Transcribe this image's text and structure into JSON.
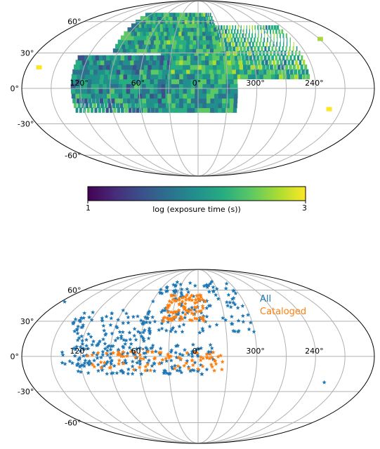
{
  "colors": {
    "all": "#1f77b4",
    "cataloged": "#ff7f0e",
    "grid": "#b0b0b0",
    "viridis": [
      "#440154",
      "#472c7a",
      "#3b518b",
      "#2c718e",
      "#21908d",
      "#27ad81",
      "#5cc863",
      "#aadc32",
      "#fde725"
    ]
  },
  "chart_data": [
    {
      "type": "heatmap",
      "projection": "mollweide",
      "grid": true,
      "lon_ticks": [
        "120°",
        "60°",
        "0°",
        "300°",
        "240°"
      ],
      "lat_ticks": [
        "60°",
        "30°",
        "0°",
        "-30°",
        "-60°"
      ],
      "colorbar": {
        "label": "log (exposure time (s))",
        "min_label": "1",
        "max_label": "3",
        "range": [
          1,
          3
        ],
        "colormap": "viridis"
      },
      "regions": [
        {
          "lon_range": [
            -115,
            40
          ],
          "lat_range": [
            8,
            55
          ],
          "value": 2.3
        },
        {
          "lon_range": [
            -25,
            95
          ],
          "lat_range": [
            30,
            68
          ],
          "value": 2.2
        },
        {
          "lon_range": [
            30,
            130
          ],
          "lat_range": [
            -20,
            28
          ],
          "value": 2.0
        },
        {
          "lon_range": [
            -40,
            30
          ],
          "lat_range": [
            -20,
            10
          ],
          "value": 2.1
        }
      ],
      "isolated_patches": [
        {
          "lon": 167,
          "lat": 17,
          "value": 2.9
        },
        {
          "lon": -138,
          "lat": -18,
          "value": 2.95
        },
        {
          "lon": -150,
          "lat": 42,
          "value": 2.7
        }
      ]
    },
    {
      "type": "scatter",
      "projection": "mollweide",
      "grid": true,
      "lon_ticks": [
        "120°",
        "60°",
        "0°",
        "300°",
        "240°"
      ],
      "lat_ticks": [
        "60°",
        "30°",
        "0°",
        "-30°",
        "-60°"
      ],
      "legend_position": "upper-right",
      "series": [
        {
          "name": "All",
          "marker": "star",
          "count_estimate": 420,
          "clusters": [
            {
              "lon_range": [
                -60,
                60
              ],
              "lat_range": [
                20,
                70
              ]
            },
            {
              "lon_range": [
                -20,
                130
              ],
              "lat_range": [
                -15,
                10
              ]
            },
            {
              "lon_range": [
                50,
                140
              ],
              "lat_range": [
                -10,
                40
              ]
            }
          ],
          "points": [
            [
              -135,
              -22
            ],
            [
              175,
              48
            ]
          ]
        },
        {
          "name": "Cataloged",
          "marker": "star",
          "count_estimate": 170,
          "clusters": [
            {
              "lon_range": [
                -25,
                115
              ],
              "lat_range": [
                -12,
                4
              ]
            },
            {
              "lon_range": [
                -10,
                40
              ],
              "lat_range": [
                30,
                55
              ]
            }
          ],
          "points": []
        }
      ]
    }
  ]
}
